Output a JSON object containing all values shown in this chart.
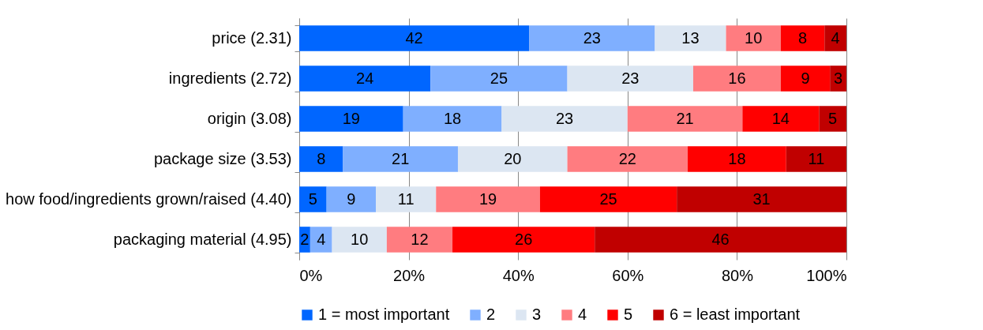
{
  "chart_data": {
    "type": "bar",
    "orientation": "horizontal",
    "stacked": true,
    "data_labels": true,
    "grid": "x",
    "legend": "bottom",
    "categories": [
      "price (2.31)",
      "ingredients (2.72)",
      "origin (3.08)",
      "package size (3.53)",
      "how food/ingredients grown/raised (4.40)",
      "packaging material (4.95)"
    ],
    "xlim": [
      0,
      100
    ],
    "xticks": [
      {
        "value": 0,
        "label": "0%"
      },
      {
        "value": 20,
        "label": "20%"
      },
      {
        "value": 40,
        "label": "40%"
      },
      {
        "value": 60,
        "label": "60%"
      },
      {
        "value": 80,
        "label": "80%"
      },
      {
        "value": 100,
        "label": "100%"
      }
    ],
    "series": [
      {
        "name": "1 = most important",
        "color": "#0066ff",
        "values": [
          42,
          24,
          19,
          8,
          5,
          2
        ]
      },
      {
        "name": "2",
        "color": "#7fafff",
        "values": [
          23,
          25,
          18,
          21,
          9,
          4
        ]
      },
      {
        "name": "3",
        "color": "#dce6f2",
        "values": [
          13,
          23,
          23,
          20,
          11,
          10
        ]
      },
      {
        "name": "4",
        "color": "#ff7c80",
        "values": [
          10,
          16,
          21,
          22,
          19,
          12
        ]
      },
      {
        "name": "5",
        "color": "#ff0000",
        "values": [
          8,
          9,
          14,
          18,
          25,
          26
        ]
      },
      {
        "name": "6 = least important",
        "color": "#c00000",
        "values": [
          4,
          3,
          5,
          11,
          31,
          46
        ]
      }
    ]
  }
}
